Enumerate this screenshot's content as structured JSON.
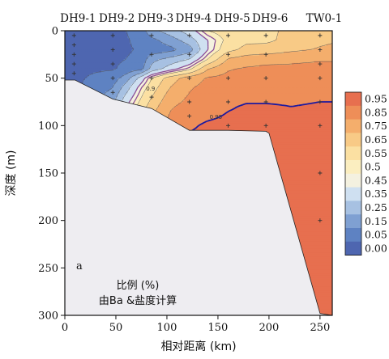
{
  "chart_data": {
    "type": "heatmap",
    "panel_label": "a",
    "annotation": [
      "比例 (%)",
      "由Ba &盐度计算"
    ],
    "xlabel": "相对距离 (km)",
    "ylabel": "深度 (m)",
    "xlim": [
      0,
      262
    ],
    "ylim": [
      300,
      0
    ],
    "x_ticks": [
      0,
      50,
      100,
      150,
      200,
      250
    ],
    "y_ticks": [
      0,
      50,
      100,
      150,
      200,
      250,
      300
    ],
    "stations": [
      {
        "name": "DH9-1",
        "x": 9
      },
      {
        "name": "DH9-2",
        "x": 47
      },
      {
        "name": "DH9-3",
        "x": 85
      },
      {
        "name": "DH9-4",
        "x": 122
      },
      {
        "name": "DH9-5",
        "x": 160
      },
      {
        "name": "DH9-6",
        "x": 197
      },
      {
        "name": "TW0-1",
        "x": 250
      }
    ],
    "colorbar": {
      "levels": [
        0.0,
        0.05,
        0.15,
        0.25,
        0.35,
        0.45,
        0.5,
        0.55,
        0.65,
        0.75,
        0.85,
        0.95
      ],
      "colors": [
        "#4E66B0",
        "#5E82C2",
        "#7FA0D2",
        "#A7C1E2",
        "#CFE0F1",
        "#F4F1E0",
        "#FBEEC0",
        "#FBE0A2",
        "#F8CA86",
        "#F4AE6C",
        "#EE8E58",
        "#E76F4F"
      ]
    },
    "contour_labels": [
      {
        "text": "0.9",
        "x": 84,
        "y": 63
      },
      {
        "text": "0.95",
        "x": 148,
        "y": 93
      }
    ],
    "samples": [
      {
        "x": 9,
        "depths": [
          5,
          15,
          25,
          35,
          45
        ]
      },
      {
        "x": 47,
        "depths": [
          5,
          20,
          35,
          50,
          65
        ]
      },
      {
        "x": 85,
        "depths": [
          5,
          25,
          50,
          70
        ]
      },
      {
        "x": 122,
        "depths": [
          5,
          25,
          50,
          75,
          90
        ]
      },
      {
        "x": 160,
        "depths": [
          5,
          25,
          50,
          75,
          100
        ]
      },
      {
        "x": 197,
        "depths": [
          5,
          25,
          50,
          75,
          100
        ]
      },
      {
        "x": 250,
        "depths": [
          5,
          20,
          35,
          50,
          75,
          100,
          150,
          200
        ]
      }
    ],
    "bathymetry": [
      [
        0,
        52
      ],
      [
        10,
        52
      ],
      [
        47,
        72
      ],
      [
        85,
        82
      ],
      [
        122,
        105
      ],
      [
        160,
        105
      ],
      [
        197,
        106
      ],
      [
        200,
        108
      ],
      [
        250,
        298
      ],
      [
        262,
        300
      ]
    ],
    "fraction_grid": {
      "x": [
        0,
        9,
        47,
        60,
        75,
        85,
        103,
        122,
        140,
        160,
        178,
        197,
        222,
        250,
        262
      ],
      "y": [
        0,
        10,
        20,
        30,
        40,
        50,
        60,
        70,
        80,
        90,
        100,
        110,
        125,
        150,
        175,
        200,
        225,
        250,
        275,
        300
      ],
      "values": [
        [
          0.03,
          0.03,
          0.04,
          0.05,
          0.1,
          0.22,
          0.3,
          0.4,
          0.55,
          0.6,
          0.63,
          0.63,
          0.67,
          0.72,
          0.74
        ],
        [
          0.03,
          0.03,
          0.03,
          0.04,
          0.08,
          0.12,
          0.2,
          0.3,
          0.45,
          0.58,
          0.63,
          0.63,
          0.68,
          0.73,
          0.74
        ],
        [
          0.03,
          0.03,
          0.03,
          0.04,
          0.06,
          0.08,
          0.12,
          0.2,
          0.45,
          0.62,
          0.68,
          0.69,
          0.73,
          0.76,
          0.77
        ],
        [
          0.03,
          0.03,
          0.03,
          0.05,
          0.08,
          0.22,
          0.28,
          0.35,
          0.55,
          0.76,
          0.8,
          0.82,
          0.83,
          0.84,
          0.84
        ],
        [
          0.03,
          0.03,
          0.04,
          0.08,
          0.12,
          0.28,
          0.4,
          0.52,
          0.74,
          0.84,
          0.86,
          0.87,
          0.87,
          0.88,
          0.88
        ],
        [
          0.03,
          0.03,
          0.1,
          0.2,
          0.4,
          0.55,
          0.7,
          0.8,
          0.86,
          0.88,
          0.89,
          0.89,
          0.9,
          0.91,
          0.91
        ],
        [
          0.03,
          0.03,
          0.15,
          0.3,
          0.5,
          0.6,
          0.75,
          0.84,
          0.88,
          0.89,
          0.9,
          0.91,
          0.92,
          0.92,
          0.93
        ],
        [
          0.03,
          0.03,
          0.2,
          0.38,
          0.55,
          0.65,
          0.8,
          0.86,
          0.89,
          0.91,
          0.93,
          0.93,
          0.93,
          0.94,
          0.94
        ],
        [
          0.03,
          0.03,
          0.25,
          0.45,
          0.6,
          0.7,
          0.84,
          0.88,
          0.9,
          0.94,
          0.96,
          0.96,
          0.95,
          0.96,
          0.96
        ],
        [
          0.03,
          0.03,
          0.28,
          0.5,
          0.65,
          0.75,
          0.86,
          0.9,
          0.93,
          0.96,
          0.97,
          0.98,
          0.97,
          0.96,
          0.96
        ],
        [
          0.03,
          0.03,
          0.3,
          0.52,
          0.68,
          0.78,
          0.88,
          0.93,
          0.97,
          0.98,
          0.98,
          0.98,
          0.98,
          0.98,
          0.98
        ],
        [
          0.03,
          0.03,
          0.3,
          0.52,
          0.68,
          0.78,
          0.89,
          0.96,
          0.98,
          0.98,
          0.98,
          0.98,
          0.98,
          0.98,
          0.98
        ],
        [
          0.03,
          0.03,
          0.3,
          0.52,
          0.68,
          0.78,
          0.89,
          0.96,
          0.98,
          0.98,
          0.98,
          0.98,
          0.98,
          0.98,
          0.98
        ],
        [
          0.03,
          0.03,
          0.3,
          0.52,
          0.68,
          0.78,
          0.89,
          0.96,
          0.98,
          0.98,
          0.98,
          0.98,
          0.98,
          0.98,
          0.98
        ],
        [
          0.03,
          0.03,
          0.3,
          0.52,
          0.68,
          0.78,
          0.89,
          0.96,
          0.98,
          0.98,
          0.98,
          0.98,
          0.98,
          0.98,
          0.98
        ],
        [
          0.03,
          0.03,
          0.3,
          0.52,
          0.68,
          0.78,
          0.89,
          0.96,
          0.98,
          0.98,
          0.98,
          0.98,
          0.98,
          0.98,
          0.98
        ],
        [
          0.03,
          0.03,
          0.3,
          0.52,
          0.68,
          0.78,
          0.89,
          0.96,
          0.98,
          0.98,
          0.98,
          0.98,
          0.98,
          0.98,
          0.98
        ],
        [
          0.03,
          0.03,
          0.3,
          0.52,
          0.68,
          0.78,
          0.89,
          0.96,
          0.98,
          0.98,
          0.98,
          0.98,
          0.98,
          0.98,
          0.98
        ],
        [
          0.03,
          0.03,
          0.3,
          0.52,
          0.68,
          0.78,
          0.89,
          0.96,
          0.98,
          0.98,
          0.98,
          0.98,
          0.98,
          0.98,
          0.98
        ],
        [
          0.03,
          0.03,
          0.3,
          0.52,
          0.68,
          0.78,
          0.89,
          0.96,
          0.98,
          0.98,
          0.98,
          0.98,
          0.98,
          0.98,
          0.98
        ]
      ]
    },
    "colors": {
      "seafloor": "#EEEDF1",
      "frame": "#111111",
      "sample_mark": "#333333",
      "isoline_thin": "#5A5A5A",
      "isoline_purple": "#8B4E97",
      "isoline_highlight": "#1D1AA0"
    }
  }
}
